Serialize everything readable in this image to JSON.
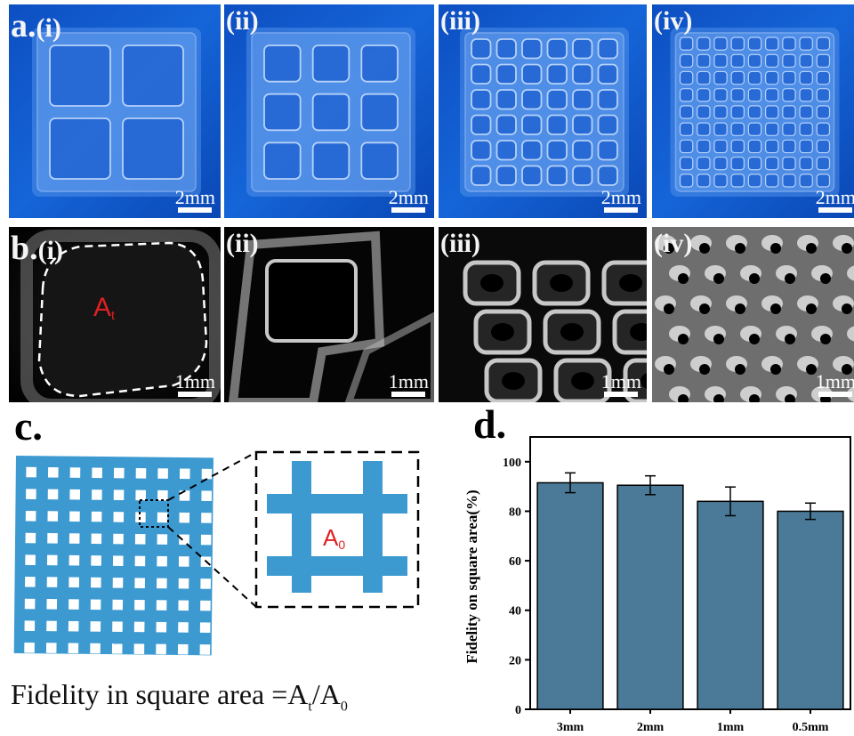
{
  "figure": {
    "row_a": {
      "label": "a.",
      "panels": [
        {
          "tag": "(i)",
          "scale_bar": "2mm",
          "grid": 2
        },
        {
          "tag": "(ii)",
          "scale_bar": "2mm",
          "grid": 3
        },
        {
          "tag": "(iii)",
          "scale_bar": "2mm",
          "grid": 6
        },
        {
          "tag": "(iv)",
          "scale_bar": "2mm",
          "grid": 9
        }
      ]
    },
    "row_b": {
      "label": "b.",
      "panels": [
        {
          "tag": "(i)",
          "scale_bar": "1mm",
          "area_label": "A",
          "area_sub": "t"
        },
        {
          "tag": "(ii)",
          "scale_bar": "1mm"
        },
        {
          "tag": "(iii)",
          "scale_bar": "1mm"
        },
        {
          "tag": "(iv)",
          "scale_bar": "1mm"
        }
      ]
    },
    "panel_c": {
      "label": "c.",
      "inset_label": "A",
      "inset_sub": "0",
      "formula_prefix": "Fidelity in square area =A",
      "formula_sub1": "t",
      "formula_mid": "/A",
      "formula_sub2": "0",
      "mesh_color": "#3d9ad1",
      "label_color": "#e02020"
    },
    "panel_d": {
      "label": "d."
    }
  },
  "chart_data": {
    "type": "bar",
    "categories": [
      "3mm",
      "2mm",
      "1mm",
      "0.5mm"
    ],
    "values": [
      91.5,
      90.5,
      84.0,
      80.0
    ],
    "errors": [
      4.0,
      3.8,
      5.8,
      3.3
    ],
    "ylabel": "Fidelity on  square  area(%)",
    "xlabel": "",
    "ylim": [
      0,
      110
    ],
    "yticks": [
      0,
      20,
      40,
      60,
      80,
      100
    ],
    "bar_color": "#4a7a97",
    "grid": false
  }
}
